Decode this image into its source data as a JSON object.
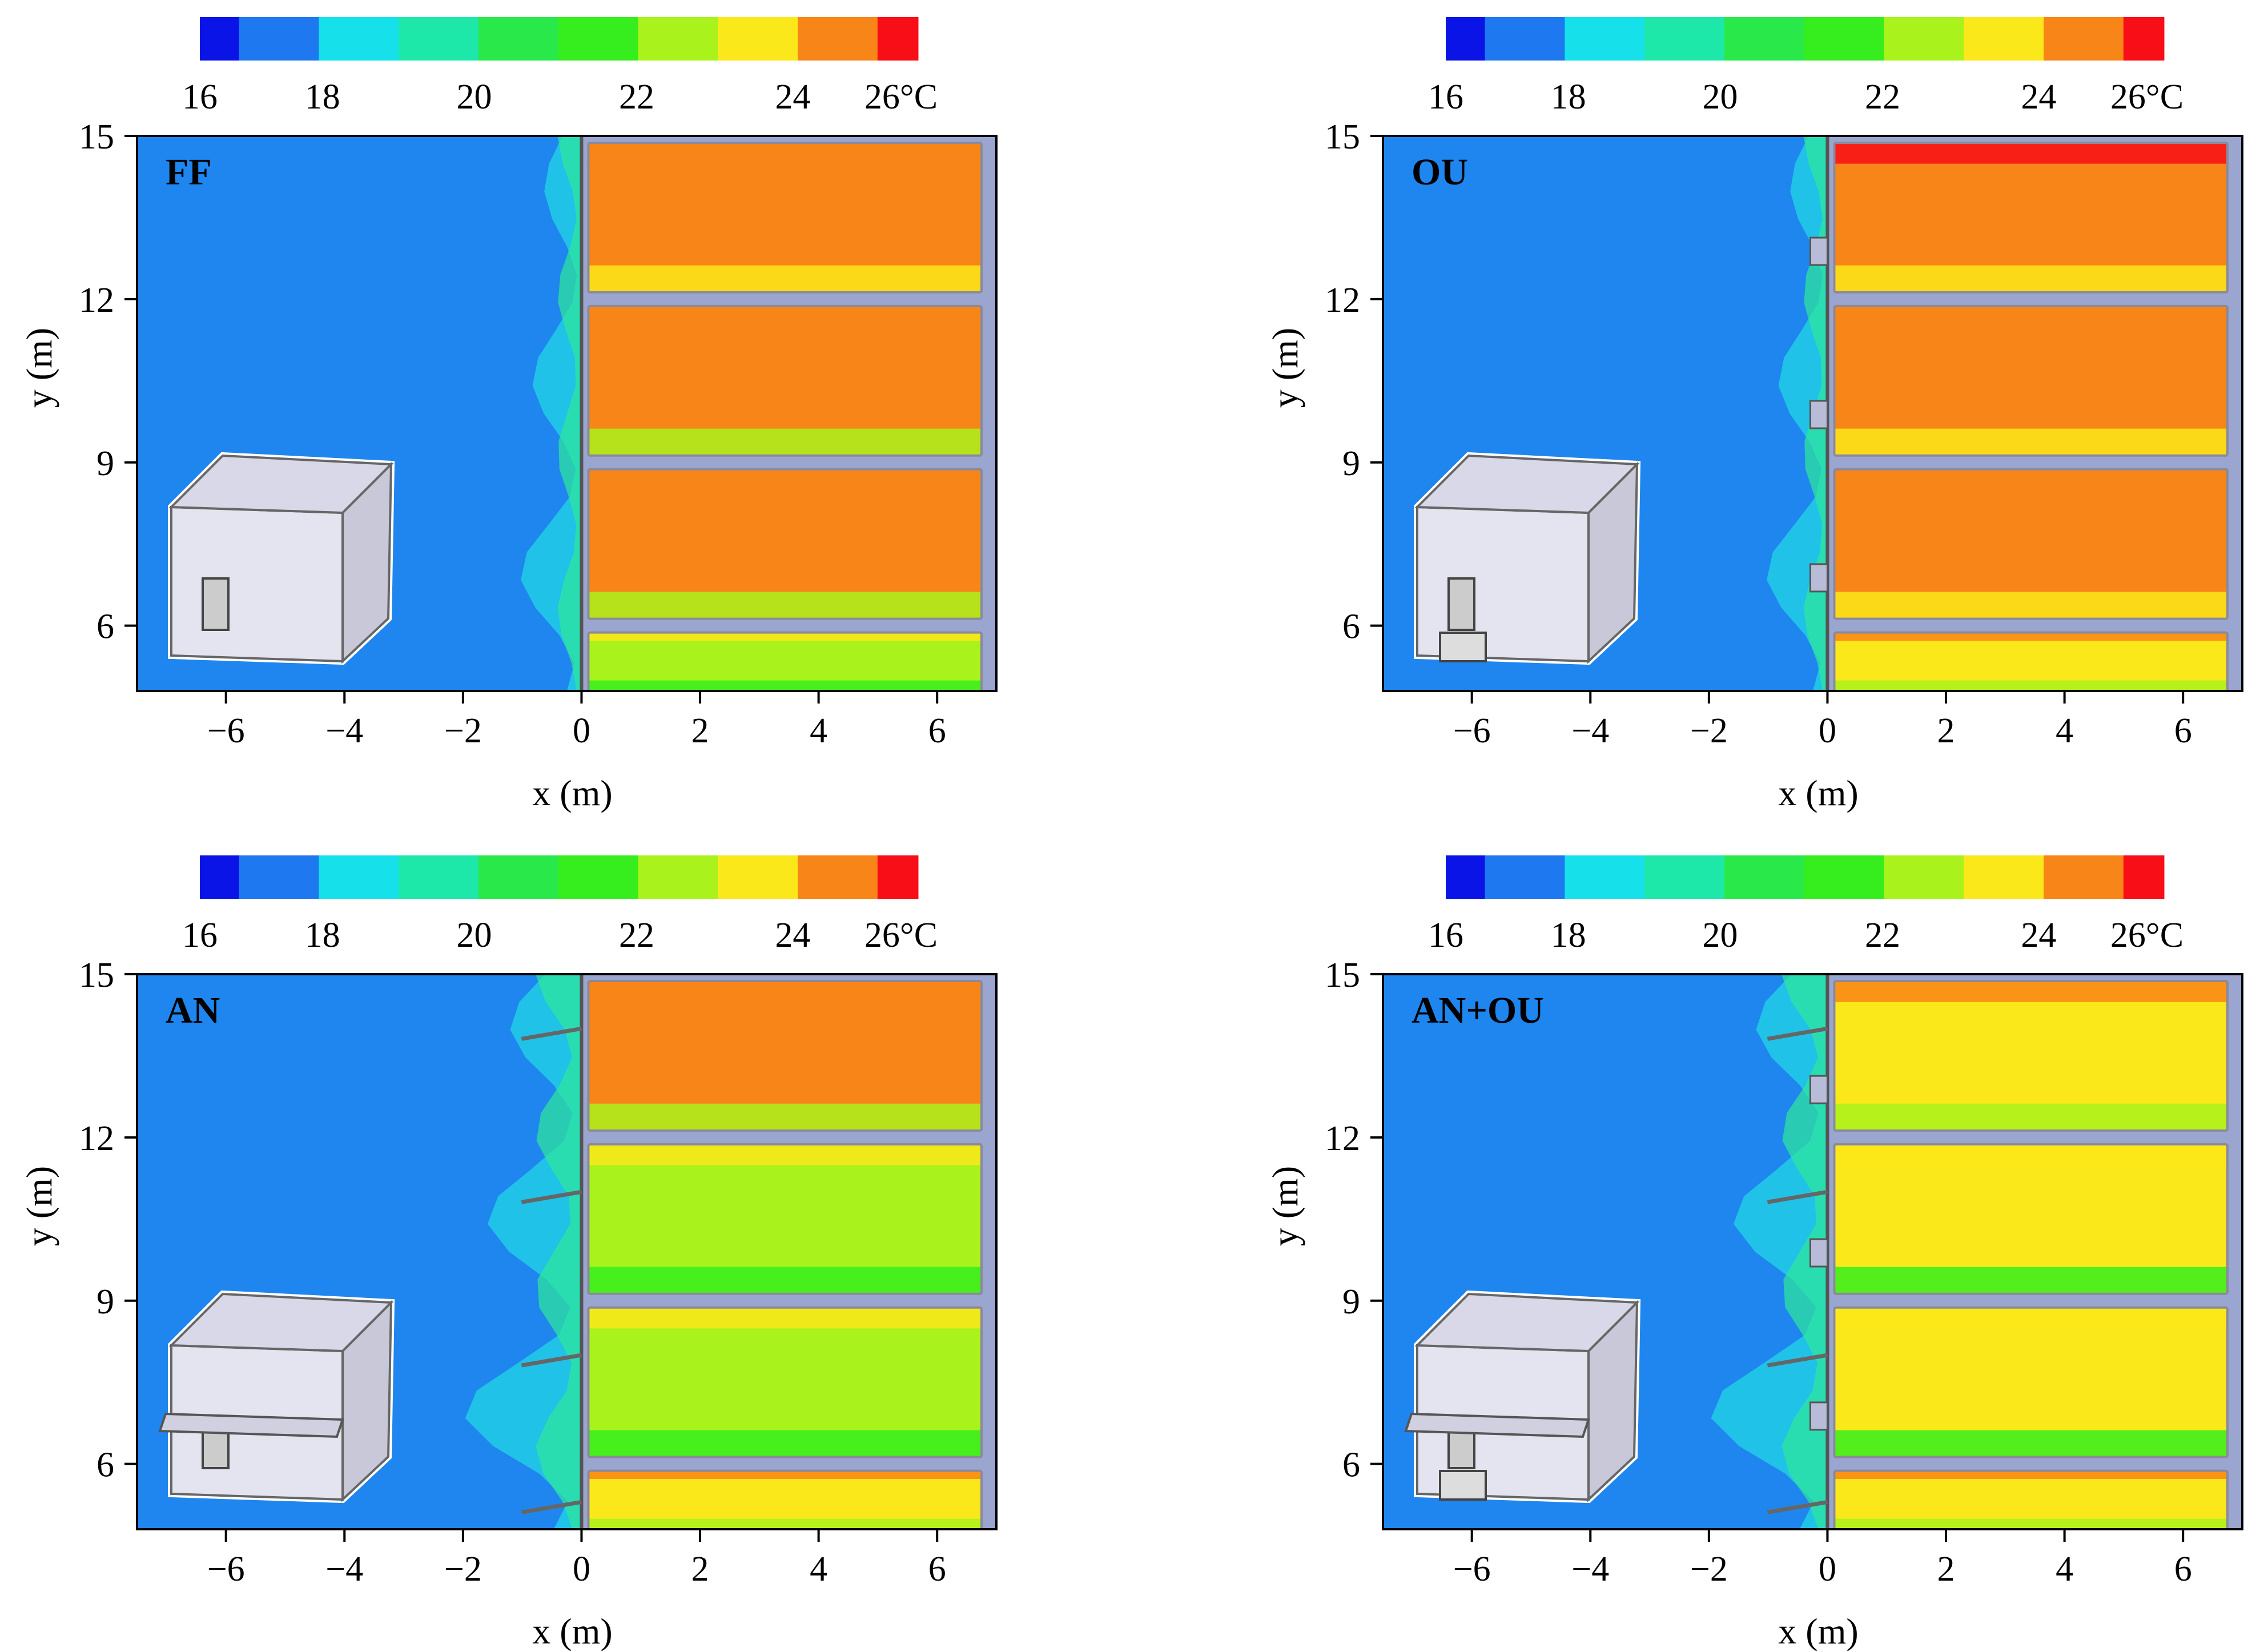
{
  "colorbar": {
    "colors": [
      "#0a14e6",
      "#1e78f0",
      "#16e1ea",
      "#1de8a9",
      "#29e84a",
      "#36ee1d",
      "#a9f21c",
      "#fbe81a",
      "#f88517",
      "#f80e16"
    ],
    "ticks": [
      "16",
      "18",
      "20",
      "22",
      "24",
      "26°C"
    ]
  },
  "colors": {
    "outdoor_air": "#1f86ef",
    "wall": "#8a8a9a",
    "building_bg": "#9aa6d0",
    "axis": "#000000"
  },
  "chart_data": [
    {
      "type": "heatmap",
      "label": "FF",
      "xlabel": "x (m)",
      "ylabel": "y (m)",
      "xlim": [
        -7.5,
        7.0
      ],
      "ylim": [
        4.8,
        15.0
      ],
      "xticks": [
        "−6",
        "−4",
        "−2",
        "0",
        "2",
        "4",
        "6"
      ],
      "yticks": [
        "15",
        "12",
        "9",
        "6"
      ],
      "device": "none",
      "rooms_temperature_C": [
        24.5,
        24.0,
        24.0,
        22.8
      ]
    },
    {
      "type": "heatmap",
      "label": "OU",
      "xlabel": "x (m)",
      "ylabel": "y (m)",
      "xlim": [
        -7.5,
        7.0
      ],
      "ylim": [
        4.8,
        15.0
      ],
      "xticks": [
        "−6",
        "−4",
        "−2",
        "0",
        "2",
        "4",
        "6"
      ],
      "yticks": [
        "15",
        "12",
        "9",
        "6"
      ],
      "device": "outdoor unit",
      "rooms_temperature_C": [
        24.8,
        24.6,
        24.3,
        23.2
      ]
    },
    {
      "type": "heatmap",
      "label": "AN",
      "xlabel": "x (m)",
      "ylabel": "y (m)",
      "xlim": [
        -7.5,
        7.0
      ],
      "ylim": [
        4.8,
        15.0
      ],
      "xticks": [
        "−6",
        "−4",
        "−2",
        "0",
        "2",
        "4",
        "6"
      ],
      "yticks": [
        "15",
        "12",
        "9",
        "6"
      ],
      "device": "awning",
      "rooms_temperature_C": [
        24.0,
        22.8,
        22.8,
        23.3
      ]
    },
    {
      "type": "heatmap",
      "label": "AN+OU",
      "xlabel": "x (m)",
      "ylabel": "y (m)",
      "xlim": [
        -7.5,
        7.0
      ],
      "ylim": [
        4.8,
        15.0
      ],
      "xticks": [
        "−6",
        "−4",
        "−2",
        "0",
        "2",
        "4",
        "6"
      ],
      "yticks": [
        "15",
        "12",
        "9",
        "6"
      ],
      "device": "awning and outdoor unit",
      "rooms_temperature_C": [
        23.8,
        23.0,
        23.0,
        23.3
      ]
    }
  ]
}
